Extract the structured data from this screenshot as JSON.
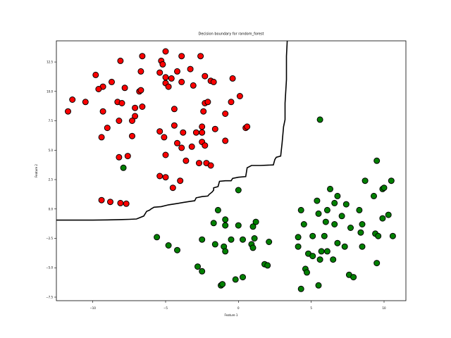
{
  "chart_data": {
    "type": "scatter",
    "title": "Decision boundary for random_forest",
    "xlabel": "Feature 1",
    "ylabel": "Feature 2",
    "xlim": [
      -12.5,
      11.5
    ],
    "ylim": [
      -7.8,
      14.3
    ],
    "xticks": [
      -10,
      -5,
      0,
      5,
      10
    ],
    "yticks": [
      -7.5,
      -5.0,
      -2.5,
      0.0,
      2.5,
      5.0,
      7.5,
      10.0,
      12.5
    ],
    "xtick_labels": [
      "−10",
      "−5",
      "0",
      "5",
      "10"
    ],
    "ytick_labels": [
      "−7.5",
      "−5.0",
      "−2.5",
      "0.0",
      "2.5",
      "5.0",
      "7.5",
      "10.0",
      "12.5"
    ],
    "grid": false,
    "series": [
      {
        "color": "#ff0000",
        "points": [
          [
            -6.6,
            13.0
          ],
          [
            -5.0,
            13.4
          ],
          [
            -3.9,
            13.0
          ],
          [
            -2.6,
            13.0
          ],
          [
            -8.1,
            12.6
          ],
          [
            -5.3,
            12.6
          ],
          [
            -5.2,
            12.3
          ],
          [
            -6.7,
            11.7
          ],
          [
            -5.4,
            11.6
          ],
          [
            -4.2,
            11.7
          ],
          [
            -3.3,
            11.9
          ],
          [
            -9.8,
            11.4
          ],
          [
            -2.3,
            11.3
          ],
          [
            -0.4,
            11.1
          ],
          [
            -8.7,
            10.8
          ],
          [
            -5.0,
            11.2
          ],
          [
            -4.6,
            11.1
          ],
          [
            -5.0,
            10.7
          ],
          [
            -3.9,
            10.8
          ],
          [
            -1.9,
            10.9
          ],
          [
            -1.7,
            10.8
          ],
          [
            -9.3,
            10.4
          ],
          [
            -9.6,
            10.2
          ],
          [
            -7.8,
            10.3
          ],
          [
            -6.8,
            10.0
          ],
          [
            -6.7,
            10.1
          ],
          [
            -4.8,
            10.4
          ],
          [
            -3.1,
            10.5
          ],
          [
            0.1,
            9.6
          ],
          [
            -11.4,
            9.3
          ],
          [
            -10.5,
            9.1
          ],
          [
            -8.3,
            9.1
          ],
          [
            -8.0,
            9.0
          ],
          [
            -7.1,
            8.6
          ],
          [
            -6.6,
            8.7
          ],
          [
            -4.4,
            8.5
          ],
          [
            -2.3,
            9.0
          ],
          [
            -2.1,
            9.1
          ],
          [
            -0.5,
            9.1
          ],
          [
            -11.7,
            8.3
          ],
          [
            -9.3,
            8.3
          ],
          [
            -7.1,
            7.9
          ],
          [
            -8.2,
            7.5
          ],
          [
            -7.3,
            7.5
          ],
          [
            -2.4,
            8.3
          ],
          [
            -0.9,
            8.1
          ],
          [
            -4.4,
            7.1
          ],
          [
            -2.5,
            7.0
          ],
          [
            -1.6,
            6.8
          ],
          [
            -9.0,
            6.9
          ],
          [
            -5.4,
            6.6
          ],
          [
            -3.8,
            6.5
          ],
          [
            -2.9,
            6.5
          ],
          [
            -2.5,
            6.5
          ],
          [
            0.5,
            6.9
          ],
          [
            0.6,
            7.0
          ],
          [
            -9.4,
            6.1
          ],
          [
            -7.3,
            6.2
          ],
          [
            -5.1,
            6.1
          ],
          [
            -4.2,
            5.6
          ],
          [
            -2.5,
            5.7
          ],
          [
            -2.3,
            5.4
          ],
          [
            -3.9,
            5.2
          ],
          [
            -3.2,
            5.3
          ],
          [
            -0.9,
            5.8
          ],
          [
            -5.0,
            4.6
          ],
          [
            -8.2,
            4.4
          ],
          [
            -7.6,
            4.5
          ],
          [
            -3.6,
            4.1
          ],
          [
            -2.7,
            3.9
          ],
          [
            -2.2,
            3.9
          ],
          [
            -1.9,
            3.7
          ],
          [
            -5.4,
            2.8
          ],
          [
            -5.0,
            2.7
          ],
          [
            -4.0,
            2.4
          ],
          [
            -4.5,
            1.8
          ],
          [
            -9.4,
            0.75
          ],
          [
            -8.8,
            0.6
          ],
          [
            -8.1,
            0.5
          ],
          [
            -7.7,
            0.45
          ]
        ]
      },
      {
        "color": "#008000",
        "points": [
          [
            5.6,
            7.6
          ],
          [
            9.5,
            4.1
          ],
          [
            -7.9,
            3.5
          ],
          [
            10.5,
            2.4
          ],
          [
            8.7,
            2.4
          ],
          [
            6.3,
            1.7
          ],
          [
            9.9,
            1.7
          ],
          [
            10.0,
            1.8
          ],
          [
            6.8,
            1.1
          ],
          [
            9.3,
            1.1
          ],
          [
            0.0,
            1.6
          ],
          [
            5.4,
            0.7
          ],
          [
            6.6,
            0.5
          ],
          [
            7.4,
            0.4
          ],
          [
            4.3,
            -0.1
          ],
          [
            6.1,
            -0.1
          ],
          [
            8.3,
            -0.1
          ],
          [
            10.3,
            -0.5
          ],
          [
            -1.4,
            -0.1
          ],
          [
            5.5,
            -0.4
          ],
          [
            -0.9,
            -0.9
          ],
          [
            -1.7,
            -1.2
          ],
          [
            -0.9,
            -1.4
          ],
          [
            0.0,
            -1.4
          ],
          [
            1.2,
            -1.1
          ],
          [
            1.0,
            -1.5
          ],
          [
            4.5,
            -1.3
          ],
          [
            6.0,
            -1.1
          ],
          [
            6.6,
            -1.3
          ],
          [
            7.1,
            -0.6
          ],
          [
            7.7,
            -1.6
          ],
          [
            8.5,
            -1.3
          ],
          [
            9.9,
            -0.8
          ],
          [
            -5.6,
            -2.4
          ],
          [
            -2.5,
            -2.6
          ],
          [
            -1.6,
            -3.0
          ],
          [
            -0.5,
            -2.6
          ],
          [
            0.3,
            -2.6
          ],
          [
            1.1,
            -2.5
          ],
          [
            2.1,
            -2.8
          ],
          [
            4.1,
            -2.4
          ],
          [
            5.1,
            -2.3
          ],
          [
            5.9,
            -2.3
          ],
          [
            8.4,
            -2.0
          ],
          [
            9.4,
            -2.1
          ],
          [
            9.6,
            -2.3
          ],
          [
            10.6,
            -2.3
          ],
          [
            -4.8,
            -3.1
          ],
          [
            -4.2,
            -3.5
          ],
          [
            -1.0,
            -3.2
          ],
          [
            -0.9,
            -3.6
          ],
          [
            0.9,
            -3.0
          ],
          [
            1.0,
            -3.3
          ],
          [
            4.1,
            -3.2
          ],
          [
            4.8,
            -3.8
          ],
          [
            5.1,
            -4.0
          ],
          [
            5.7,
            -3.6
          ],
          [
            6.1,
            -3.6
          ],
          [
            6.8,
            -2.9
          ],
          [
            7.3,
            -3.2
          ],
          [
            8.5,
            -3.2
          ],
          [
            -2.8,
            -4.9
          ],
          [
            -2.5,
            -5.3
          ],
          [
            1.8,
            -4.7
          ],
          [
            2.0,
            -4.8
          ],
          [
            4.6,
            -5.1
          ],
          [
            4.7,
            -5.4
          ],
          [
            5.6,
            -4.3
          ],
          [
            6.5,
            -4.3
          ],
          [
            9.5,
            -4.6
          ],
          [
            7.6,
            -5.6
          ],
          [
            7.9,
            -5.8
          ],
          [
            -1.2,
            -6.5
          ],
          [
            -1.1,
            -6.4
          ],
          [
            -0.2,
            -6.0
          ],
          [
            0.3,
            -5.8
          ],
          [
            4.3,
            -6.8
          ],
          [
            5.5,
            -6.5
          ]
        ]
      }
    ],
    "boundary": [
      [
        -12.5,
        -0.95
      ],
      [
        -11.0,
        -0.95
      ],
      [
        -10.0,
        -0.95
      ],
      [
        -9.0,
        -0.93
      ],
      [
        -8.0,
        -0.9
      ],
      [
        -7.5,
        -0.88
      ],
      [
        -7.0,
        -0.85
      ],
      [
        -6.5,
        -0.6
      ],
      [
        -6.3,
        -0.2
      ],
      [
        -6.1,
        -0.1
      ],
      [
        -6.0,
        0.0
      ],
      [
        -5.8,
        0.15
      ],
      [
        -5.3,
        0.2
      ],
      [
        -4.8,
        0.35
      ],
      [
        -4.3,
        0.45
      ],
      [
        -3.8,
        0.55
      ],
      [
        -3.3,
        0.65
      ],
      [
        -3.0,
        0.7
      ],
      [
        -2.9,
        0.95
      ],
      [
        -2.5,
        1.05
      ],
      [
        -2.1,
        1.1
      ],
      [
        -2.0,
        1.25
      ],
      [
        -1.8,
        1.45
      ],
      [
        -1.7,
        1.6
      ],
      [
        -1.7,
        1.8
      ],
      [
        -1.4,
        1.9
      ],
      [
        -1.3,
        2.35
      ],
      [
        -0.9,
        2.4
      ],
      [
        -0.5,
        2.4
      ],
      [
        -0.4,
        2.6
      ],
      [
        0.0,
        2.7
      ],
      [
        0.5,
        2.75
      ],
      [
        0.6,
        3.5
      ],
      [
        0.9,
        3.7
      ],
      [
        1.5,
        3.7
      ],
      [
        2.4,
        3.75
      ],
      [
        2.5,
        4.2
      ],
      [
        2.6,
        4.4
      ],
      [
        2.9,
        4.5
      ],
      [
        3.0,
        5.6
      ],
      [
        3.1,
        7.0
      ],
      [
        3.2,
        7.6
      ],
      [
        3.2,
        9.0
      ],
      [
        3.3,
        11.0
      ],
      [
        3.3,
        13.0
      ],
      [
        3.35,
        14.3
      ]
    ]
  }
}
